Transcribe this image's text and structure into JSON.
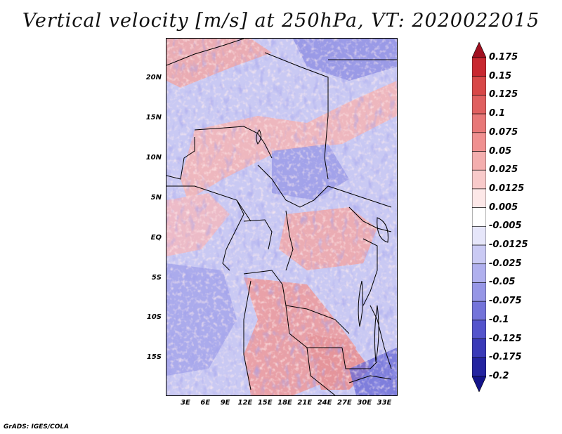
{
  "title": "Vertical velocity [m/s] at 250hPa, VT: 2020022015",
  "footer": "GrADS: IGES/COLA",
  "map": {
    "lat_labels": [
      "20N",
      "15N",
      "10N",
      "5N",
      "EQ",
      "5S",
      "10S",
      "15S"
    ],
    "lon_labels": [
      "3E",
      "6E",
      "9E",
      "12E",
      "15E",
      "18E",
      "21E",
      "24E",
      "27E",
      "30E",
      "33E"
    ]
  },
  "colorbar": {
    "levels": [
      "0.175",
      "0.15",
      "0.125",
      "0.1",
      "0.075",
      "0.05",
      "0.025",
      "0.0125",
      "0.005",
      "-0.005",
      "-0.0125",
      "-0.025",
      "-0.05",
      "-0.075",
      "-0.1",
      "-0.125",
      "-0.175",
      "-0.2"
    ],
    "colors": [
      "#a01020",
      "#c82830",
      "#d84848",
      "#e06060",
      "#e87878",
      "#f09090",
      "#f4aeae",
      "#f8caca",
      "#fde8e8",
      "#ffffff",
      "#e6e6fa",
      "#cacaf4",
      "#b0b0ee",
      "#9696e6",
      "#7474da",
      "#5454cc",
      "#3a3ab8",
      "#2424a0",
      "#14148a"
    ]
  }
}
